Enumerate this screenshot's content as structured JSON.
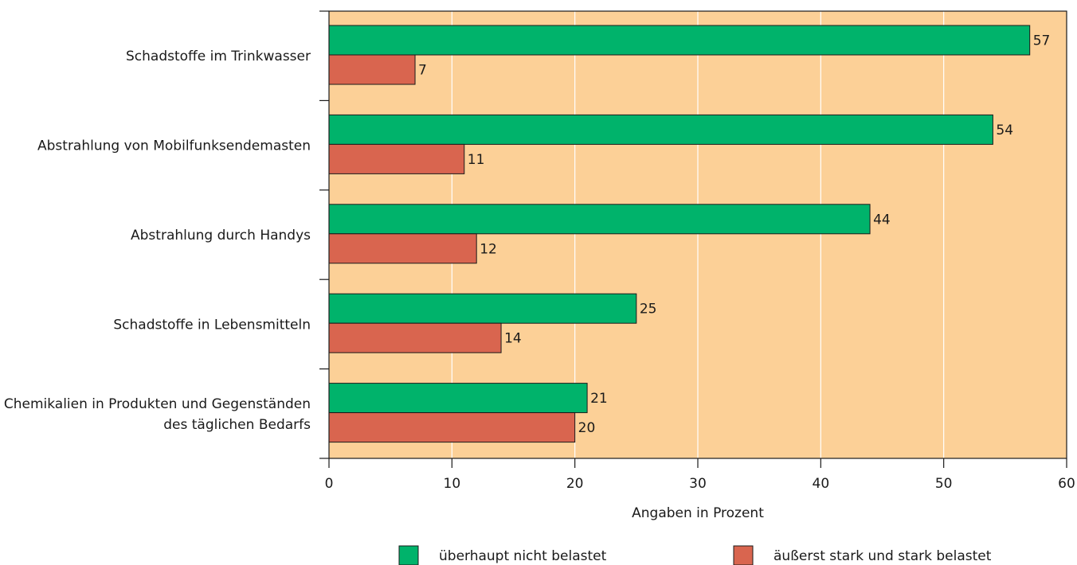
{
  "chart_data": {
    "type": "bar",
    "orientation": "horizontal",
    "categories": [
      [
        "Schadstoffe im Trinkwasser"
      ],
      [
        "Abstrahlung von Mobilfunksendemasten"
      ],
      [
        "Abstrahlung durch Handys"
      ],
      [
        "Schadstoffe in Lebensmitteln"
      ],
      [
        "Chemikalien in Produkten und Gegenständen",
        "des täglichen Bedarfs"
      ]
    ],
    "series": [
      {
        "name": "überhaupt nicht belastet",
        "color": "#00b36b",
        "values": [
          57,
          54,
          44,
          25,
          21
        ]
      },
      {
        "name": "äußerst stark und stark belastet",
        "color": "#d9654f",
        "values": [
          7,
          11,
          12,
          14,
          20
        ]
      }
    ],
    "xlim": [
      0,
      60
    ],
    "xticks": [
      0,
      10,
      20,
      30,
      40,
      50,
      60
    ],
    "xlabel": "Angaben in Prozent",
    "grid": "vertical",
    "background": "#fcd097",
    "legend_position": "bottom"
  }
}
